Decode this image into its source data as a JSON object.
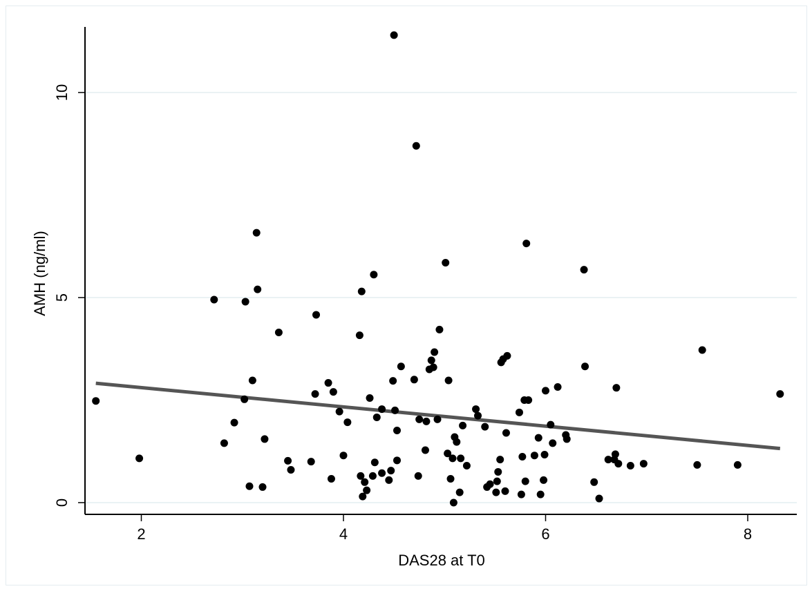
{
  "chart_data": {
    "type": "scatter",
    "xlabel": "DAS28 at T0",
    "ylabel": "AMH (ng/ml)",
    "xlim": [
      1.5,
      8.5
    ],
    "ylim": [
      -0.3,
      11.6
    ],
    "xticks": [
      "2",
      "4",
      "6",
      "8"
    ],
    "yticks": [
      "0",
      "5",
      "10"
    ],
    "grid": true,
    "points": [
      [
        1.55,
        2.48
      ],
      [
        1.98,
        1.08
      ],
      [
        2.72,
        4.95
      ],
      [
        2.82,
        1.45
      ],
      [
        2.92,
        1.95
      ],
      [
        3.02,
        2.52
      ],
      [
        3.03,
        4.9
      ],
      [
        3.07,
        0.4
      ],
      [
        3.1,
        2.98
      ],
      [
        3.14,
        6.58
      ],
      [
        3.15,
        5.2
      ],
      [
        3.2,
        0.38
      ],
      [
        3.22,
        1.55
      ],
      [
        3.36,
        4.15
      ],
      [
        3.45,
        1.02
      ],
      [
        3.48,
        0.8
      ],
      [
        3.68,
        1.0
      ],
      [
        3.72,
        2.65
      ],
      [
        3.73,
        4.58
      ],
      [
        3.85,
        2.92
      ],
      [
        3.88,
        0.58
      ],
      [
        3.9,
        2.7
      ],
      [
        3.96,
        2.22
      ],
      [
        4.0,
        1.15
      ],
      [
        4.04,
        1.96
      ],
      [
        4.16,
        4.08
      ],
      [
        4.17,
        0.65
      ],
      [
        4.18,
        5.15
      ],
      [
        4.19,
        0.15
      ],
      [
        4.21,
        0.5
      ],
      [
        4.23,
        0.3
      ],
      [
        4.26,
        2.55
      ],
      [
        4.29,
        0.65
      ],
      [
        4.3,
        5.56
      ],
      [
        4.31,
        0.98
      ],
      [
        4.33,
        2.08
      ],
      [
        4.38,
        0.72
      ],
      [
        4.38,
        2.28
      ],
      [
        4.45,
        0.55
      ],
      [
        4.47,
        0.78
      ],
      [
        4.49,
        2.97
      ],
      [
        4.5,
        11.4
      ],
      [
        4.51,
        2.25
      ],
      [
        4.53,
        1.76
      ],
      [
        4.53,
        1.03
      ],
      [
        4.57,
        3.32
      ],
      [
        4.7,
        3.0
      ],
      [
        4.72,
        8.7
      ],
      [
        4.74,
        0.65
      ],
      [
        4.75,
        2.03
      ],
      [
        4.81,
        1.28
      ],
      [
        4.82,
        1.98
      ],
      [
        4.85,
        3.25
      ],
      [
        4.87,
        3.47
      ],
      [
        4.89,
        3.3
      ],
      [
        4.9,
        3.67
      ],
      [
        4.93,
        2.03
      ],
      [
        4.95,
        4.22
      ],
      [
        5.01,
        5.85
      ],
      [
        5.03,
        1.2
      ],
      [
        5.04,
        2.98
      ],
      [
        5.06,
        0.58
      ],
      [
        5.08,
        1.08
      ],
      [
        5.09,
        0.0
      ],
      [
        5.1,
        1.6
      ],
      [
        5.12,
        1.48
      ],
      [
        5.15,
        0.25
      ],
      [
        5.16,
        1.08
      ],
      [
        5.18,
        1.88
      ],
      [
        5.22,
        0.9
      ],
      [
        5.31,
        2.28
      ],
      [
        5.33,
        2.12
      ],
      [
        5.4,
        1.85
      ],
      [
        5.42,
        0.38
      ],
      [
        5.45,
        0.45
      ],
      [
        5.51,
        0.25
      ],
      [
        5.52,
        0.52
      ],
      [
        5.53,
        0.75
      ],
      [
        5.55,
        1.05
      ],
      [
        5.56,
        3.42
      ],
      [
        5.58,
        3.5
      ],
      [
        5.6,
        0.28
      ],
      [
        5.61,
        1.7
      ],
      [
        5.62,
        3.58
      ],
      [
        5.74,
        2.2
      ],
      [
        5.76,
        0.2
      ],
      [
        5.77,
        1.12
      ],
      [
        5.79,
        2.5
      ],
      [
        5.8,
        0.52
      ],
      [
        5.81,
        6.32
      ],
      [
        5.83,
        2.5
      ],
      [
        5.89,
        1.15
      ],
      [
        5.93,
        1.58
      ],
      [
        5.95,
        0.2
      ],
      [
        5.98,
        0.55
      ],
      [
        5.99,
        1.17
      ],
      [
        6.0,
        2.73
      ],
      [
        6.05,
        1.9
      ],
      [
        6.07,
        1.45
      ],
      [
        6.12,
        2.82
      ],
      [
        6.2,
        1.65
      ],
      [
        6.21,
        1.55
      ],
      [
        6.38,
        5.68
      ],
      [
        6.39,
        3.32
      ],
      [
        6.48,
        0.5
      ],
      [
        6.53,
        0.1
      ],
      [
        6.62,
        1.05
      ],
      [
        6.68,
        1.05
      ],
      [
        6.69,
        1.18
      ],
      [
        6.7,
        2.8
      ],
      [
        6.72,
        0.95
      ],
      [
        6.84,
        0.9
      ],
      [
        6.97,
        0.95
      ],
      [
        7.5,
        0.92
      ],
      [
        7.55,
        3.72
      ],
      [
        7.9,
        0.92
      ],
      [
        8.32,
        2.65
      ]
    ],
    "fit_line": {
      "x": [
        1.55,
        8.32
      ],
      "y": [
        2.91,
        1.32
      ]
    }
  }
}
